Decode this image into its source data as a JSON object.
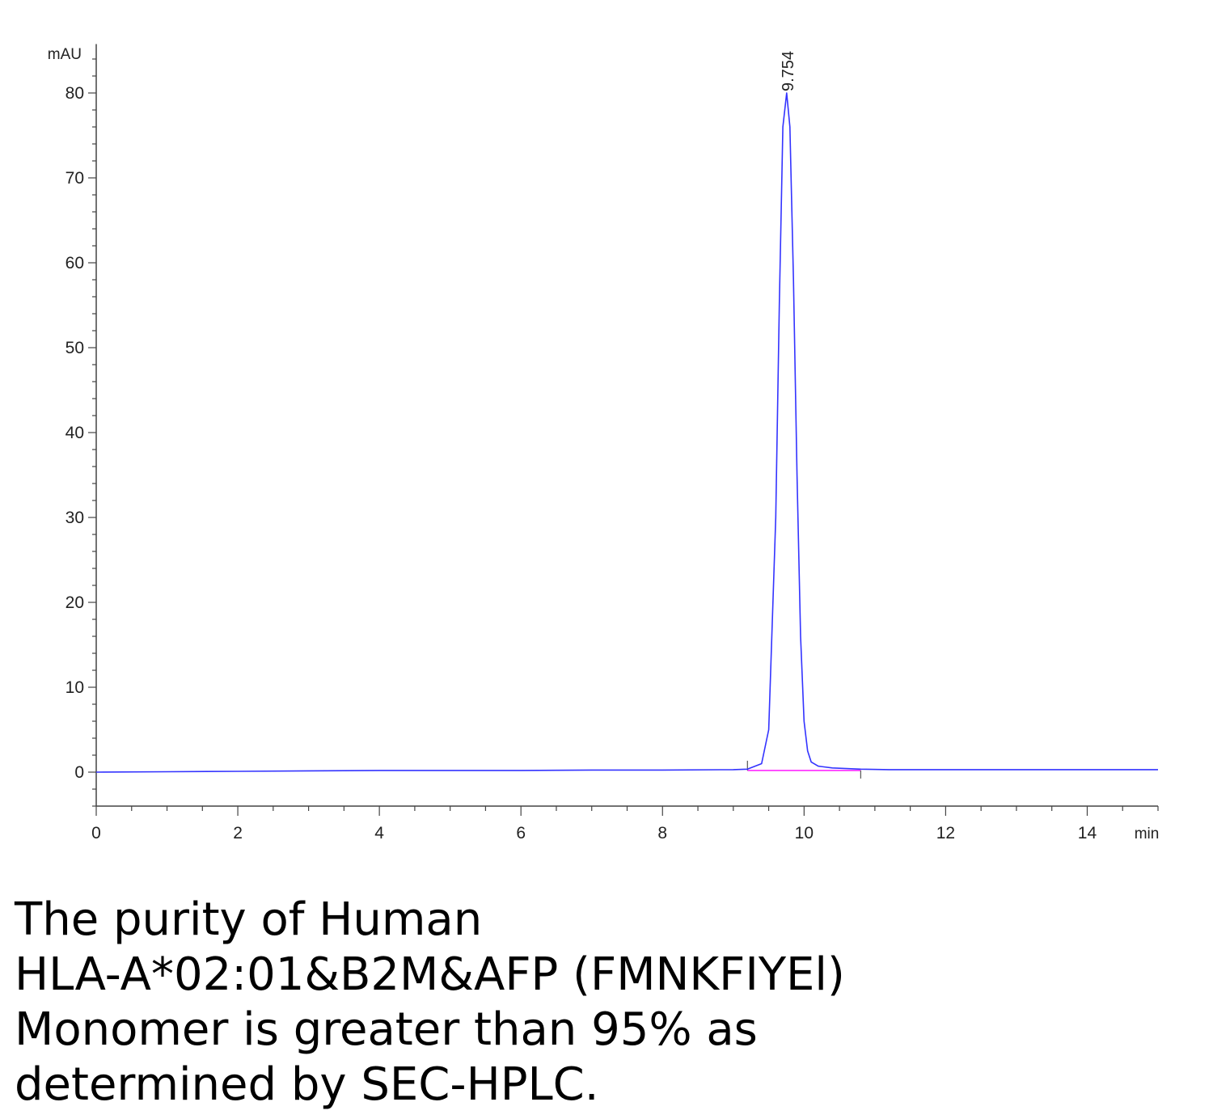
{
  "chart_data": {
    "type": "line",
    "ylabel": "mAU",
    "xlabel": "min",
    "xlim": [
      0,
      15
    ],
    "ylim": [
      -4,
      85
    ],
    "x_ticks": [
      0,
      2,
      4,
      6,
      8,
      10,
      12,
      14
    ],
    "y_ticks": [
      0,
      10,
      20,
      30,
      40,
      50,
      60,
      70,
      80
    ],
    "grid": false,
    "series": [
      {
        "color": "#3333ff",
        "x": [
          0,
          1,
          2,
          3,
          4,
          5,
          6,
          7,
          8,
          9,
          9.2,
          9.4,
          9.5,
          9.6,
          9.65,
          9.7,
          9.754,
          9.8,
          9.85,
          9.9,
          9.95,
          10.0,
          10.05,
          10.1,
          10.2,
          10.4,
          10.8,
          11.2,
          12,
          13,
          14,
          15
        ],
        "y": [
          0,
          0.05,
          0.1,
          0.15,
          0.2,
          0.2,
          0.2,
          0.25,
          0.25,
          0.3,
          0.35,
          1.0,
          5.0,
          30.0,
          55.0,
          76.0,
          80.0,
          76.0,
          58.0,
          35.0,
          16.0,
          6.0,
          2.5,
          1.2,
          0.7,
          0.5,
          0.35,
          0.3,
          0.3,
          0.3,
          0.3,
          0.3
        ]
      }
    ],
    "baseline": {
      "color": "#ff00ff",
      "x": [
        9.2,
        10.8
      ],
      "y": [
        0.2,
        0.2
      ]
    },
    "annotations": [
      {
        "text": "9.754",
        "x": 9.754,
        "y": 80.0
      }
    ]
  },
  "caption": {
    "lines": [
      "The purity of Human",
      "HLA-A*02:01&B2M&AFP (FMNKFIYEl)",
      "Monomer is greater than 95% as",
      "determined by SEC-HPLC."
    ]
  }
}
